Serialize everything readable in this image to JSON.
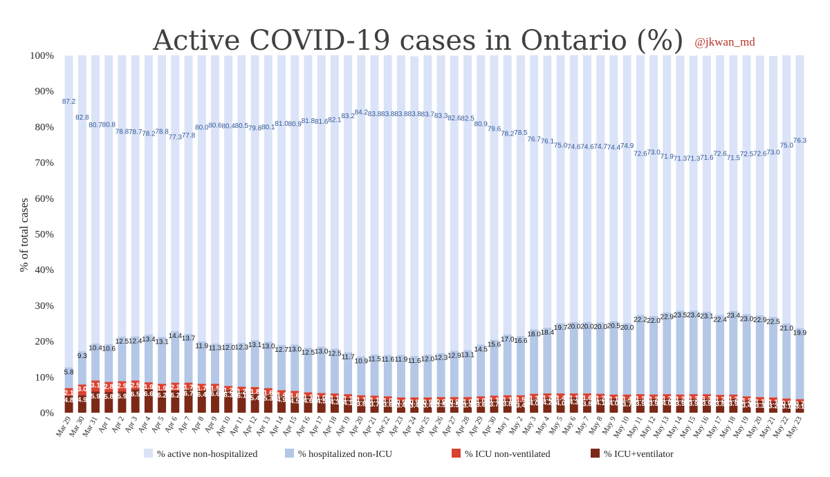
{
  "header": {
    "handle": "@jkwan_md"
  },
  "colors": {
    "active_non_hosp": "#dae3f7",
    "hosp_non_icu": "#b4c7e7",
    "icu_non_vent": "#d94231",
    "icu_vent": "#7b2817",
    "label_blue": "#2f5597"
  },
  "chart_data": {
    "type": "bar",
    "stacked": true,
    "title": "Active COVID-19 cases in Ontario (%)",
    "ylabel": "% of total cases",
    "xlabel": "",
    "ylim": [
      0,
      100
    ],
    "yticks": [
      "0%",
      "10%",
      "20%",
      "30%",
      "40%",
      "50%",
      "60%",
      "70%",
      "80%",
      "90%",
      "100%"
    ],
    "grid": false,
    "legend_position": "bottom",
    "categories": [
      "Mar 29",
      "Mar 30",
      "Mar 31",
      "Apr 1",
      "Apr 2",
      "Apr 3",
      "Apr 4",
      "Apr 5",
      "Apr 6",
      "Apr 7",
      "Apr 8",
      "Apr 9",
      "Apr 10",
      "Apr 11",
      "Apr 12",
      "Apr 13",
      "Apr 14",
      "Apr 15",
      "Apr 16",
      "Apr 17",
      "Apr 18",
      "Apr 19",
      "Apr 20",
      "Apr 21",
      "Apr 22",
      "Apr 23",
      "Apr 24",
      "Apr 25",
      "Apr 26",
      "Apr 27",
      "Apr 28",
      "Apr 29",
      "Apr 30",
      "May 1",
      "May 2",
      "May 3",
      "May 4",
      "May 5",
      "May 6",
      "May 7",
      "May 8",
      "May 9",
      "May 10",
      "May 11",
      "May 12",
      "May 13",
      "May 14",
      "May 15",
      "May 16",
      "May 17",
      "May 18",
      "May 19",
      "May 20",
      "May 21",
      "May 22",
      "May 23"
    ],
    "series": [
      {
        "name": "% ICU+ventilator",
        "values": [
          4.8,
          4.9,
          5.9,
          5.8,
          5.9,
          6.5,
          6.6,
          6.2,
          6.2,
          6.7,
          6.4,
          6.6,
          6.3,
          6.1,
          5.4,
          5.3,
          4.9,
          4.5,
          4.6,
          4.5,
          4.3,
          4.1,
          3.8,
          3.7,
          3.6,
          3.4,
          3.4,
          3.4,
          3.5,
          3.5,
          3.4,
          3.6,
          3.7,
          3.8,
          3.4,
          4.0,
          4.2,
          4.0,
          4.3,
          3.8,
          4.1,
          4.0,
          3.7,
          3.9,
          3.9,
          4.0,
          3.9,
          3.9,
          3.9,
          3.8,
          3.9,
          3.4,
          3.3,
          3.2,
          3.1,
          3.1
        ]
      },
      {
        "name": "% ICU non-ventilated",
        "values": [
          2.1,
          3.0,
          3.1,
          2.8,
          2.9,
          2.5,
          1.9,
          1.9,
          2.2,
          1.7,
          1.7,
          1.5,
          1.2,
          1.2,
          1.8,
          1.6,
          1.4,
          1.6,
          1.1,
          1.0,
          1.1,
          1.1,
          1.1,
          1.1,
          1.0,
          0.9,
          0.9,
          0.9,
          0.9,
          0.9,
          1.0,
          1.0,
          1.1,
          1.1,
          1.5,
          1.3,
          1.2,
          1.4,
          1.1,
          1.6,
          1.2,
          1.1,
          1.4,
          1.3,
          1.2,
          1.2,
          1.2,
          1.3,
          1.3,
          1.2,
          1.2,
          1.2,
          1.1,
          1.1,
          0.9,
          0.7
        ]
      },
      {
        "name": "% hospitalized non-ICU",
        "values": [
          5.8,
          9.3,
          10.4,
          10.6,
          12.5,
          12.4,
          13.4,
          13.1,
          14.4,
          13.7,
          11.9,
          11.3,
          12.0,
          12.3,
          13.1,
          13.0,
          12.7,
          13.0,
          12.5,
          13.0,
          12.5,
          11.7,
          10.9,
          11.5,
          11.6,
          11.9,
          11.6,
          12.0,
          12.3,
          12.9,
          13.1,
          14.5,
          15.6,
          17.0,
          16.6,
          18.0,
          18.4,
          19.7,
          20.0,
          20.0,
          20.0,
          20.5,
          20.0,
          22.2,
          22.0,
          22.9,
          23.5,
          23.4,
          23.1,
          22.4,
          23.4,
          23.0,
          22.9,
          22.5,
          21.0,
          19.9
        ]
      },
      {
        "name": "% active non-hospitalized",
        "values": [
          87.2,
          82.8,
          80.7,
          80.8,
          78.8,
          78.7,
          78.2,
          78.8,
          77.3,
          77.8,
          80.0,
          80.6,
          80.4,
          80.5,
          79.8,
          80.1,
          81.0,
          80.9,
          81.8,
          81.6,
          82.1,
          83.2,
          84.2,
          83.8,
          83.8,
          83.8,
          83.8,
          83.7,
          83.3,
          82.6,
          82.5,
          80.9,
          79.6,
          78.2,
          78.5,
          76.7,
          76.1,
          75.0,
          74.6,
          74.6,
          74.7,
          74.4,
          74.9,
          72.6,
          73.0,
          71.9,
          71.3,
          71.3,
          71.6,
          72.6,
          71.5,
          72.5,
          72.6,
          73.0,
          75.0,
          76.3
        ]
      }
    ]
  },
  "legend": [
    {
      "label": "% active non-hospitalized",
      "color": "#dae3f7"
    },
    {
      "label": "% hospitalized non-ICU",
      "color": "#b4c7e7"
    },
    {
      "label": "% ICU non-ventilated",
      "color": "#d94231"
    },
    {
      "label": "% ICU+ventilator",
      "color": "#7b2817"
    }
  ]
}
